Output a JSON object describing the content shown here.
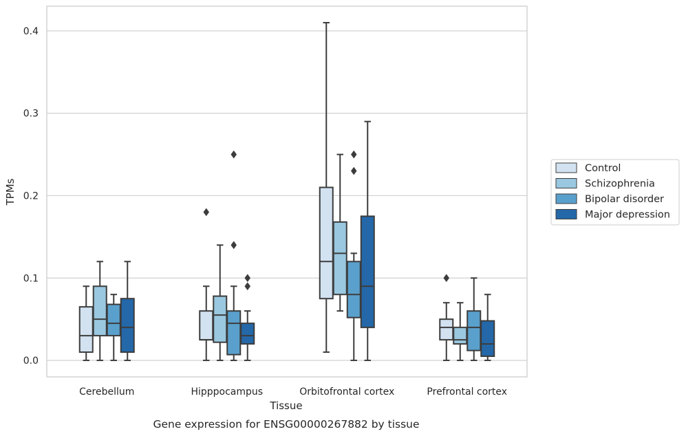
{
  "caption": "Gene expression for ENSG00000267882 by tissue",
  "chart_data": {
    "type": "box",
    "xlabel": "Tissue",
    "ylabel": "TPMs",
    "ylim": [
      -0.02,
      0.43
    ],
    "yticks": [
      0.0,
      0.1,
      0.2,
      0.3,
      0.4
    ],
    "ytick_labels": [
      "0.0",
      "0.1",
      "0.2",
      "0.3",
      "0.4"
    ],
    "grid": "horizontal",
    "legend_position": "right",
    "categories": [
      "Cerebellum",
      "Hipppocampus",
      "Orbitofrontal cortex",
      "Prefrontal cortex"
    ],
    "series": [
      {
        "name": "Control",
        "color": "#d2e2f1",
        "boxes": [
          {
            "whislo": 0.0,
            "q1": 0.01,
            "med": 0.03,
            "q3": 0.065,
            "whishi": 0.09,
            "fliers": []
          },
          {
            "whislo": 0.0,
            "q1": 0.025,
            "med": 0.025,
            "q3": 0.06,
            "whishi": 0.09,
            "fliers": [
              0.18
            ]
          },
          {
            "whislo": 0.01,
            "q1": 0.075,
            "med": 0.12,
            "q3": 0.21,
            "whishi": 0.41,
            "fliers": []
          },
          {
            "whislo": 0.0,
            "q1": 0.025,
            "med": 0.04,
            "q3": 0.05,
            "whishi": 0.07,
            "fliers": [
              0.1
            ]
          }
        ]
      },
      {
        "name": "Schizophrenia",
        "color": "#9ac8e0",
        "boxes": [
          {
            "whislo": 0.0,
            "q1": 0.03,
            "med": 0.05,
            "q3": 0.09,
            "whishi": 0.12,
            "fliers": []
          },
          {
            "whislo": 0.0,
            "q1": 0.022,
            "med": 0.055,
            "q3": 0.078,
            "whishi": 0.14,
            "fliers": []
          },
          {
            "whislo": 0.06,
            "q1": 0.08,
            "med": 0.13,
            "q3": 0.168,
            "whishi": 0.25,
            "fliers": []
          },
          {
            "whislo": 0.0,
            "q1": 0.02,
            "med": 0.025,
            "q3": 0.04,
            "whishi": 0.07,
            "fliers": []
          }
        ]
      },
      {
        "name": "Bipolar disorder",
        "color": "#5aa0cd",
        "boxes": [
          {
            "whislo": 0.0,
            "q1": 0.03,
            "med": 0.045,
            "q3": 0.068,
            "whishi": 0.08,
            "fliers": []
          },
          {
            "whislo": 0.0,
            "q1": 0.007,
            "med": 0.045,
            "q3": 0.06,
            "whishi": 0.09,
            "fliers": [
              0.14,
              0.25
            ]
          },
          {
            "whislo": 0.0,
            "q1": 0.052,
            "med": 0.08,
            "q3": 0.12,
            "whishi": 0.13,
            "fliers": [
              0.23,
              0.25
            ]
          },
          {
            "whislo": 0.0,
            "q1": 0.012,
            "med": 0.04,
            "q3": 0.06,
            "whishi": 0.1,
            "fliers": []
          }
        ]
      },
      {
        "name": "Major depression",
        "color": "#2468a9",
        "boxes": [
          {
            "whislo": 0.0,
            "q1": 0.01,
            "med": 0.04,
            "q3": 0.075,
            "whishi": 0.12,
            "fliers": []
          },
          {
            "whislo": 0.0,
            "q1": 0.02,
            "med": 0.03,
            "q3": 0.045,
            "whishi": 0.06,
            "fliers": [
              0.09,
              0.1
            ]
          },
          {
            "whislo": 0.0,
            "q1": 0.04,
            "med": 0.09,
            "q3": 0.175,
            "whishi": 0.29,
            "fliers": []
          },
          {
            "whislo": 0.0,
            "q1": 0.005,
            "med": 0.02,
            "q3": 0.048,
            "whishi": 0.08,
            "fliers": []
          }
        ]
      }
    ]
  }
}
